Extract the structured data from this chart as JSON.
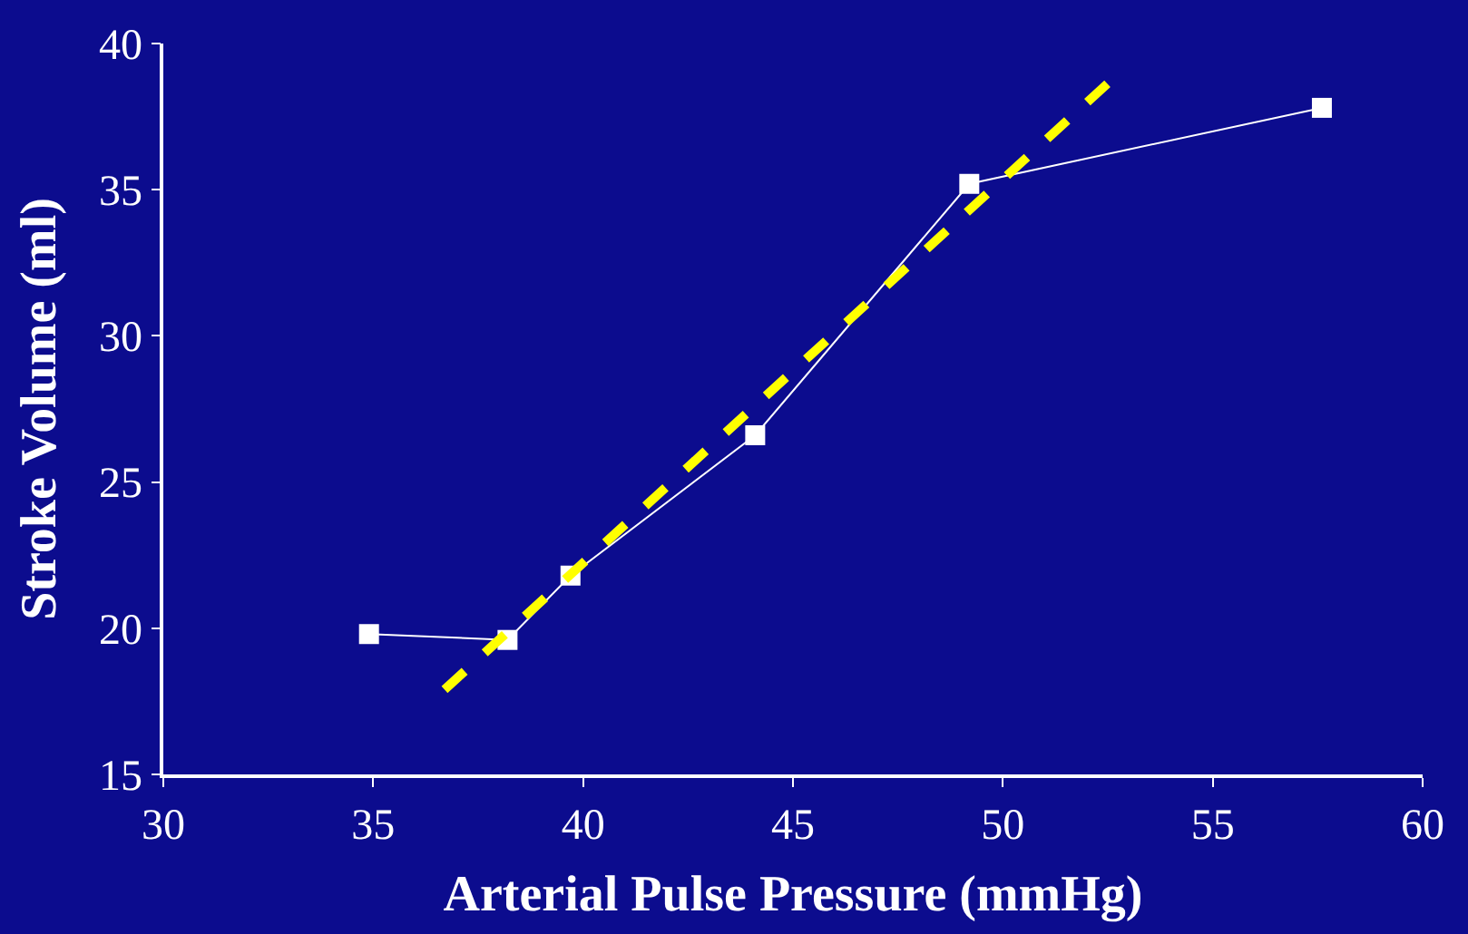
{
  "chart_data": {
    "type": "line",
    "xlabel": "Arterial Pulse Pressure (mmHg)",
    "ylabel": "Stroke Volume (ml)",
    "x": [
      34.9,
      38.2,
      39.7,
      44.1,
      49.2,
      57.6
    ],
    "series": [
      {
        "color": "#ffffff",
        "values": [
          19.8,
          19.6,
          21.8,
          26.6,
          35.2,
          37.8
        ],
        "marker": "square",
        "line_style": "solid"
      },
      {
        "type": "line",
        "x": [
          36.7,
          52.7
        ],
        "color": "#ffff00",
        "values": [
          17.9,
          38.9
        ],
        "marker": "none",
        "line_style": "dashed"
      }
    ],
    "xlim": [
      30,
      60
    ],
    "xticks": [
      30,
      35,
      40,
      45,
      50,
      55,
      60
    ],
    "ylim": [
      15,
      40
    ],
    "yticks": [
      15,
      20,
      25,
      30,
      35,
      40
    ],
    "grid": false
  }
}
